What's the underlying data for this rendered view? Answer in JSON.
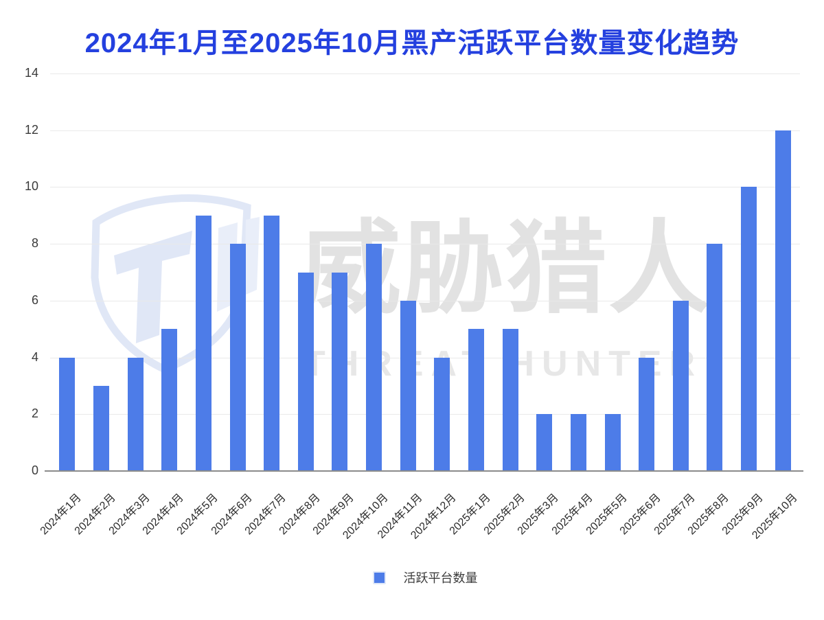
{
  "title": {
    "text": "2024年1月至2025年10月黑产活跃平台数量变化趋势",
    "color": "#2440df"
  },
  "legend": {
    "label": "活跃平台数量"
  },
  "watermark": {
    "logo_name": "threat-hunter-shield-logo",
    "text_cjk": "威胁猎人",
    "text_en": "THREAT HUNTER"
  },
  "colors": {
    "bar": "#4d7ce8",
    "title": "#2440df",
    "gridline": "#e9e9e9",
    "axis_line": "#8b8b8b",
    "tick_label": "#3a3a3a",
    "watermark_gray": "#e2e2e2",
    "watermark_gray_en": "#e7e7e7",
    "watermark_blue": "#e0e7f6"
  },
  "chart_data": {
    "type": "bar",
    "title": "2024年1月至2025年10月黑产活跃平台数量变化趋势",
    "categories": [
      "2024年1月",
      "2024年2月",
      "2024年3月",
      "2024年4月",
      "2024年5月",
      "2024年6月",
      "2024年7月",
      "2024年8月",
      "2024年9月",
      "2024年10月",
      "2024年11月",
      "2024年12月",
      "2025年1月",
      "2025年2月",
      "2025年3月",
      "2025年4月",
      "2025年5月",
      "2025年6月",
      "2025年7月",
      "2025年8月",
      "2025年9月",
      "2025年10月"
    ],
    "values": [
      4,
      3,
      4,
      5,
      9,
      8,
      9,
      7,
      7,
      8,
      6,
      4,
      5,
      5,
      2,
      2,
      2,
      4,
      6,
      8,
      10,
      12
    ],
    "series_name": "活跃平台数量",
    "xlabel": "",
    "ylabel": "",
    "ylim": [
      0,
      14
    ],
    "yticks": [
      0,
      2,
      4,
      6,
      8,
      10,
      12,
      14
    ],
    "grid": true,
    "legend_position": "bottom"
  }
}
